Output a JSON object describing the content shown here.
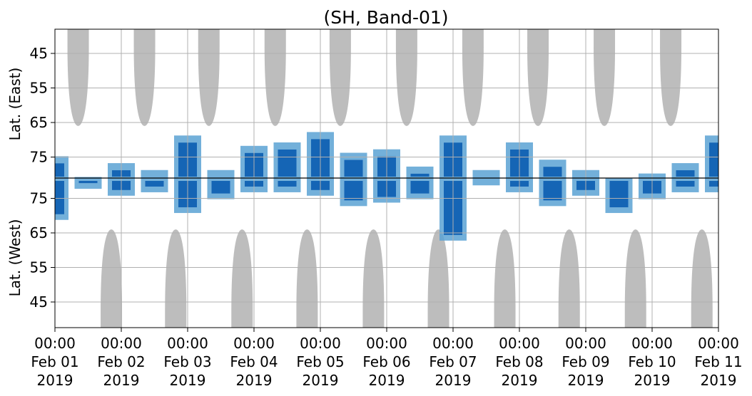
{
  "chart_data": {
    "type": "heatmap",
    "title": "(SH, Band-01)",
    "ylabel_upper": "Lat. (East)",
    "ylabel_lower": "Lat. (West)",
    "x_ticks": [
      {
        "time": "00:00",
        "date": "Feb 01",
        "year": "2019"
      },
      {
        "time": "00:00",
        "date": "Feb 02",
        "year": "2019"
      },
      {
        "time": "00:00",
        "date": "Feb 03",
        "year": "2019"
      },
      {
        "time": "00:00",
        "date": "Feb 04",
        "year": "2019"
      },
      {
        "time": "00:00",
        "date": "Feb 05",
        "year": "2019"
      },
      {
        "time": "00:00",
        "date": "Feb 06",
        "year": "2019"
      },
      {
        "time": "00:00",
        "date": "Feb 07",
        "year": "2019"
      },
      {
        "time": "00:00",
        "date": "Feb 08",
        "year": "2019"
      },
      {
        "time": "00:00",
        "date": "Feb 09",
        "year": "2019"
      },
      {
        "time": "00:00",
        "date": "Feb 10",
        "year": "2019"
      },
      {
        "time": "00:00",
        "date": "Feb 11",
        "year": "2019"
      }
    ],
    "y_ticks_upper": [
      "45",
      "55",
      "65",
      "75"
    ],
    "y_ticks_lower": [
      "75",
      "65",
      "55",
      "45"
    ],
    "grid": true,
    "colors": {
      "strong": "#1565b5",
      "weak": "#5aa2d3",
      "daylight": "#bdbdbd",
      "grid": "#b0b0b0"
    },
    "daylight_upper_centers_day": [
      0.35,
      1.35,
      2.32,
      3.32,
      4.3,
      5.3,
      6.3,
      7.28,
      8.28,
      9.28
    ],
    "daylight_lower_centers_day": [
      0.85,
      1.82,
      2.82,
      3.8,
      4.8,
      5.78,
      6.78,
      7.75,
      8.75,
      9.75
    ],
    "activity_day": [
      0.0,
      0.5,
      1.0,
      1.5,
      2.0,
      2.5,
      3.0,
      3.5,
      4.0,
      4.5,
      5.0,
      5.5,
      6.0,
      6.5,
      7.0,
      7.5,
      8.0,
      8.5,
      9.0,
      9.5,
      10.0
    ],
    "activity_east_extent_lat": [
      76,
      82,
      78,
      80,
      70,
      80,
      73,
      72,
      69,
      75,
      74,
      79,
      70,
      80,
      72,
      77,
      80,
      84,
      81,
      78,
      70
    ],
    "activity_west_extent_lat": [
      70,
      79,
      77,
      78,
      72,
      76,
      78,
      78,
      77,
      74,
      75,
      76,
      64,
      80,
      78,
      74,
      77,
      72,
      76,
      78,
      78
    ]
  }
}
